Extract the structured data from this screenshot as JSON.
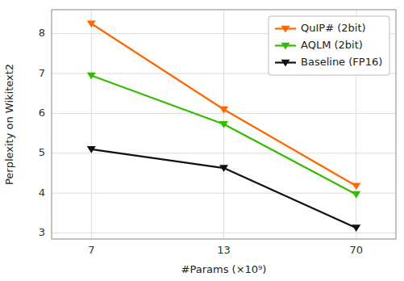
{
  "chart_data": {
    "type": "line",
    "x_label": "#Params (×10⁹)",
    "y_label": "Perplexity on Wikitext2",
    "categories": [
      "7",
      "13",
      "70"
    ],
    "series": [
      {
        "name": "QuIP# (2bit)",
        "color": "#FF6600",
        "marker": "triangle-down",
        "values": [
          8.25,
          6.1,
          4.18
        ]
      },
      {
        "name": "AQLM (2bit)",
        "color": "#33BB00",
        "marker": "triangle-down",
        "values": [
          6.95,
          5.73,
          3.97
        ]
      },
      {
        "name": "Baseline (FP16)",
        "color": "#111111",
        "marker": "triangle-down",
        "values": [
          5.1,
          4.63,
          3.13
        ]
      }
    ],
    "ylim": [
      2.85,
      8.6
    ],
    "yticks": [
      3,
      4,
      5,
      6,
      7,
      8
    ],
    "grid": true,
    "legend": "upper right"
  }
}
